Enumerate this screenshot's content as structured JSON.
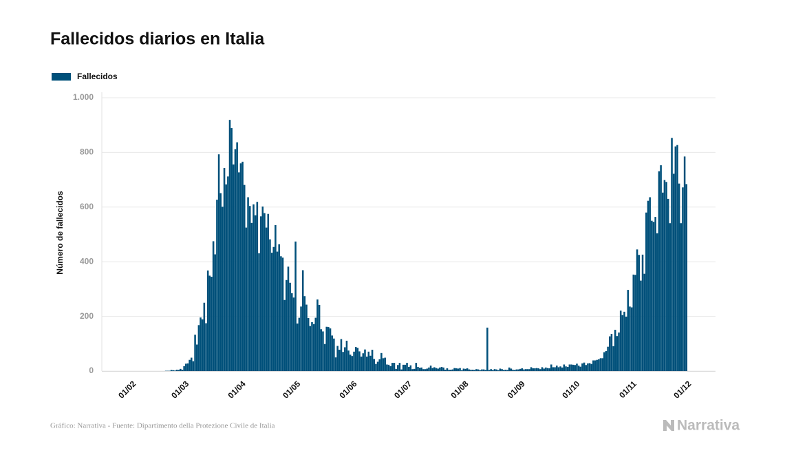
{
  "chart_data": {
    "type": "bar",
    "title": "Fallecidos diarios en Italia",
    "y_label": "Número de fallecidos",
    "source": "Gráfico: Narrativa - Fuente: Dipartimento della Protezione Civile de Italia",
    "brand": "Narrativa",
    "ylim": [
      0,
      1000
    ],
    "yticks": [
      0,
      200,
      400,
      600,
      800,
      {
        "value": 1000,
        "label": "1.000"
      }
    ],
    "grid": true,
    "legend": "top-left",
    "series": [
      {
        "name": "Fallecidos",
        "color": "#00507a",
        "values": [
          0,
          0,
          0,
          0,
          0,
          0,
          0,
          0,
          0,
          0,
          0,
          0,
          0,
          0,
          0,
          0,
          0,
          0,
          0,
          0,
          1,
          1,
          1,
          4,
          3,
          2,
          5,
          4,
          8,
          5,
          18,
          27,
          28,
          41,
          49,
          36,
          133,
          97,
          168,
          196,
          189,
          250,
          175,
          368,
          349,
          345,
          475,
          427,
          627,
          793,
          651,
          601,
          743,
          683,
          712,
          919,
          889,
          756,
          812,
          837,
          727,
          760,
          766,
          681,
          525,
          636,
          604,
          542,
          610,
          570,
          619,
          431,
          566,
          602,
          578,
          525,
          575,
          482,
          433,
          454,
          534,
          437,
          464,
          420,
          415,
          260,
          333,
          382,
          323,
          285,
          269,
          474,
          174,
          195,
          236,
          369,
          274,
          243,
          194,
          165,
          179,
          172,
          195,
          262,
          242,
          153,
          145,
          99,
          162,
          161,
          156,
          130,
          119,
          50,
          92,
          78,
          117,
          70,
          87,
          111,
          75,
          60,
          55,
          71,
          88,
          85,
          72,
          53,
          65,
          79,
          53,
          71,
          56,
          78,
          44,
          26,
          34,
          43,
          66,
          47,
          49,
          24,
          23,
          18,
          30,
          30,
          8,
          22,
          30,
          6,
          23,
          23,
          30,
          15,
          21,
          7,
          8,
          30,
          15,
          12,
          13,
          7,
          7,
          9,
          13,
          20,
          11,
          14,
          11,
          9,
          13,
          15,
          13,
          5,
          10,
          5,
          5,
          6,
          11,
          10,
          9,
          11,
          3,
          9,
          8,
          10,
          6,
          5,
          5,
          4,
          7,
          6,
          3,
          6,
          6,
          4,
          159,
          4,
          7,
          4,
          7,
          6,
          3,
          9,
          7,
          4,
          5,
          4,
          13,
          9,
          5,
          4,
          6,
          6,
          8,
          10,
          6,
          7,
          7,
          7,
          14,
          10,
          10,
          11,
          10,
          7,
          14,
          9,
          13,
          11,
          10,
          24,
          14,
          14,
          20,
          14,
          17,
          13,
          24,
          17,
          15,
          24,
          24,
          23,
          22,
          27,
          20,
          16,
          28,
          31,
          22,
          28,
          29,
          26,
          39,
          39,
          41,
          43,
          47,
          47,
          69,
          73,
          89,
          127,
          136,
          91,
          151,
          128,
          141,
          221,
          205,
          217,
          199,
          297,
          236,
          233,
          353,
          352,
          445,
          425,
          331,
          426,
          356,
          580,
          623,
          636,
          550,
          546,
          564,
          504,
          731,
          753,
          653,
          699,
          692,
          630,
          541,
          853,
          722,
          822,
          827,
          686,
          541,
          672,
          785,
          684
        ]
      }
    ],
    "categories": [
      "01/02",
      null,
      null,
      null,
      null,
      null,
      null,
      null,
      null,
      null,
      null,
      null,
      null,
      null,
      null,
      null,
      null,
      null,
      null,
      null,
      null,
      null,
      null,
      null,
      null,
      null,
      null,
      null,
      null,
      "01/03",
      null,
      null,
      null,
      null,
      null,
      null,
      null,
      null,
      null,
      null,
      null,
      null,
      null,
      null,
      null,
      null,
      null,
      null,
      null,
      null,
      null,
      null,
      null,
      null,
      null,
      null,
      null,
      null,
      null,
      null,
      "01/04",
      null,
      null,
      null,
      null,
      null,
      null,
      null,
      null,
      null,
      null,
      null,
      null,
      null,
      null,
      null,
      null,
      null,
      null,
      null,
      null,
      null,
      null,
      null,
      null,
      null,
      null,
      null,
      null,
      null,
      "01/05",
      null,
      null,
      null,
      null,
      null,
      null,
      null,
      null,
      null,
      null,
      null,
      null,
      null,
      null,
      null,
      null,
      null,
      null,
      null,
      null,
      null,
      null,
      null,
      null,
      null,
      null,
      null,
      null,
      null,
      null,
      "01/06",
      null,
      null,
      null,
      null,
      null,
      null,
      null,
      null,
      null,
      null,
      null,
      null,
      null,
      null,
      null,
      null,
      null,
      null,
      null,
      null,
      null,
      null,
      null,
      null,
      null,
      null,
      null,
      null,
      null,
      "01/07",
      null,
      null,
      null,
      null,
      null,
      null,
      null,
      null,
      null,
      null,
      null,
      null,
      null,
      null,
      null,
      null,
      null,
      null,
      null,
      null,
      null,
      null,
      null,
      null,
      null,
      null,
      null,
      null,
      null,
      null,
      "01/08",
      null,
      null,
      null,
      null,
      null,
      null,
      null,
      null,
      null,
      null,
      null,
      null,
      null,
      null,
      null,
      null,
      null,
      null,
      null,
      null,
      null,
      null,
      null,
      null,
      null,
      null,
      null,
      null,
      null,
      null,
      "01/09",
      null,
      null,
      null,
      null,
      null,
      null,
      null,
      null,
      null,
      null,
      null,
      null,
      null,
      null,
      null,
      null,
      null,
      null,
      null,
      null,
      null,
      null,
      null,
      null,
      null,
      null,
      null,
      null,
      null,
      "01/10",
      null,
      null,
      null,
      null,
      null,
      null,
      null,
      null,
      null,
      null,
      null,
      null,
      null,
      null,
      null,
      null,
      null,
      null,
      null,
      null,
      null,
      null,
      null,
      null,
      null,
      null,
      null,
      null,
      null,
      null,
      "01/11",
      null,
      null,
      null,
      null,
      null,
      null,
      null,
      null,
      null,
      null,
      null,
      null,
      null,
      null,
      null,
      null,
      null,
      null,
      null,
      null,
      null,
      null,
      null,
      null,
      null,
      null,
      null,
      null,
      null,
      "01/12",
      null
    ]
  }
}
